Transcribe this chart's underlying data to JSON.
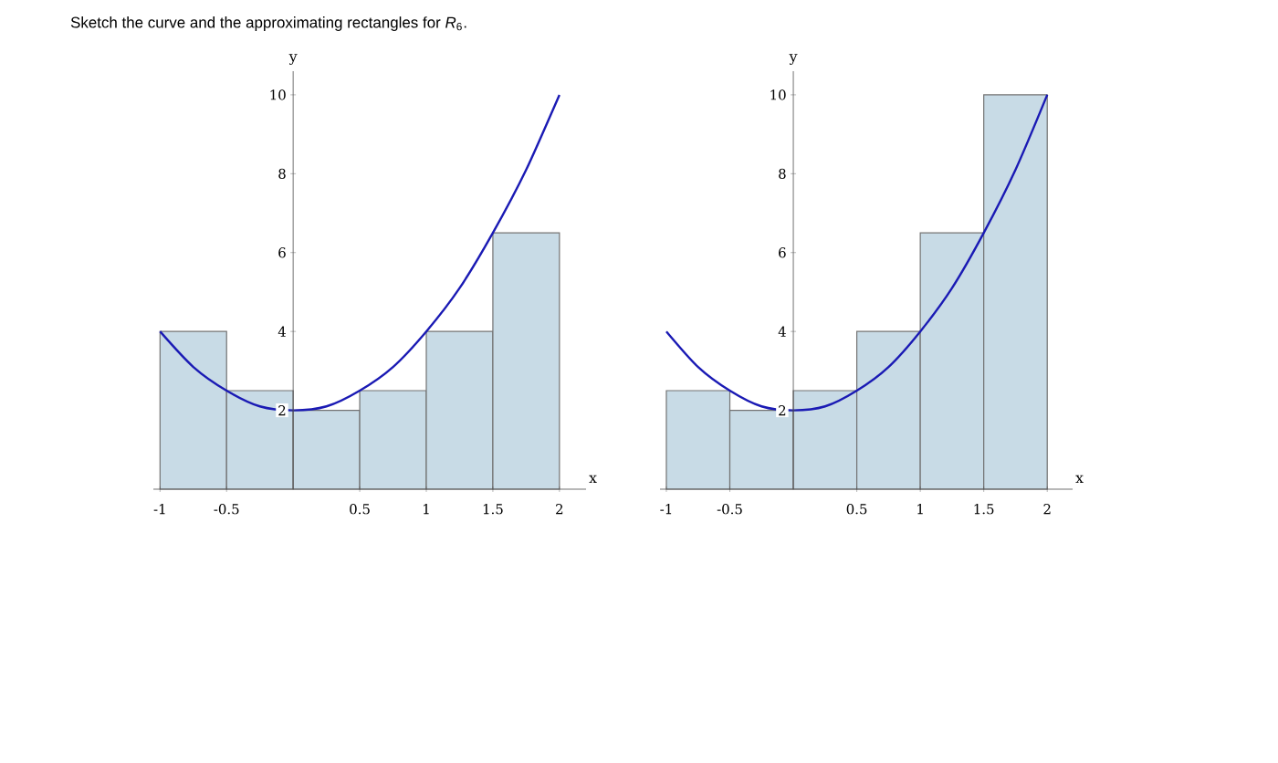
{
  "chart_data": [
    {
      "type": "histogram",
      "title": "Sketch the curve and the approximating rectangles for *R*$_{6}$.",
      "xlabel": "x",
      "ylabel": "y",
      "series": [
        {
          "bins": [
            -1,
            -0.5,
            0,
            0.5,
            1,
            1.5,
            2
          ],
          "values": [
            4,
            2.5,
            2,
            2.5,
            4,
            6.5
          ],
          "color": "#c8dbe6"
        },
        {
          "type": "line",
          "x": [
            -1,
            -0.75,
            -0.5,
            -0.25,
            0,
            0.25,
            0.5,
            0.75,
            1,
            1.25,
            1.5,
            1.75,
            2
          ],
          "values": [
            4,
            3.1,
            2.5,
            2.1,
            2,
            2.1,
            2.5,
            3.1,
            4,
            5.1,
            6.5,
            8.1,
            10
          ],
          "color": "#1a1ab4"
        }
      ],
      "xlim": [
        -1.05,
        2.2
      ],
      "ylim": [
        0,
        10.6
      ],
      "xticks": [
        -1,
        -0.5,
        0.5,
        1,
        1.5,
        2
      ],
      "yticks": [
        2,
        4,
        6,
        8,
        10
      ]
    },
    {
      "type": "histogram",
      "xlabel": "x",
      "ylabel": "y",
      "series": [
        {
          "bins": [
            -1,
            -0.5,
            0,
            0.5,
            1,
            1.5,
            2
          ],
          "values": [
            2.5,
            2,
            2.5,
            4,
            6.5,
            10
          ],
          "color": "#c8dbe6"
        },
        {
          "type": "line",
          "x": [
            -1,
            -0.75,
            -0.5,
            -0.25,
            0,
            0.25,
            0.5,
            0.75,
            1,
            1.25,
            1.5,
            1.75,
            2
          ],
          "values": [
            4,
            3.1,
            2.5,
            2.1,
            2,
            2.1,
            2.5,
            3.1,
            4,
            5.1,
            6.5,
            8.1,
            10
          ],
          "color": "#1a1ab4"
        }
      ],
      "xlim": [
        -1.05,
        2.2
      ],
      "ylim": [
        0,
        10.6
      ],
      "xticks": [
        -1,
        -0.5,
        0.5,
        1,
        1.5,
        2
      ],
      "yticks": [
        2,
        4,
        6,
        8,
        10
      ]
    }
  ]
}
